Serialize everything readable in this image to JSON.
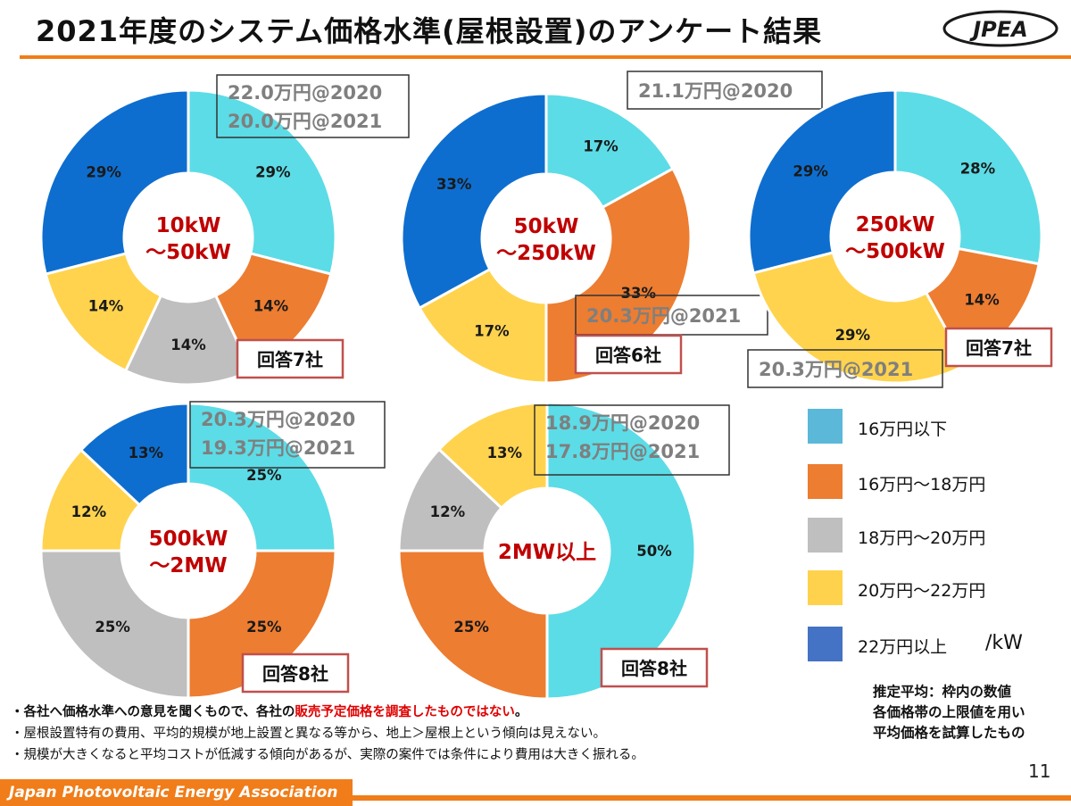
{
  "header": {
    "title": "2021年度のシステム価格水準(屋根設置)のアンケート結果",
    "logo_text": "JPEA"
  },
  "colors": {
    "accent": "#f07d19",
    "center_label": "#c00000",
    "note_highlight": "#e00000"
  },
  "chart_data": [
    {
      "type": "pie",
      "center_label": [
        "10kW",
        "～50kW"
      ],
      "categories": [
        "16万円以下",
        "16万円～18万円",
        "18万円～20万円",
        "20万円～22万円",
        "22万円以上"
      ],
      "values": [
        29,
        14,
        14,
        14,
        29
      ],
      "value_labels": [
        "29%",
        "14%",
        "14%",
        "14%",
        "29%"
      ],
      "price_box": [
        "22.0万円@2020",
        "20.0万円@2021"
      ],
      "respondents": "回答7社"
    },
    {
      "type": "pie",
      "center_label": [
        "50kW",
        "～250kW"
      ],
      "categories": [
        "16万円以下",
        "16万円～18万円",
        "18万円～20万円",
        "20万円～22万円",
        "22万円以上"
      ],
      "values": [
        17,
        33,
        0,
        17,
        33
      ],
      "value_labels": [
        "17%",
        "33%",
        "",
        "17%",
        "33%"
      ],
      "price_box_top": "21.1万円@2020",
      "price_box_bottom": "20.3万円@2021",
      "respondents": "回答6社"
    },
    {
      "type": "pie",
      "center_label": [
        "250kW",
        "～500kW"
      ],
      "categories": [
        "16万円以下",
        "16万円～18万円",
        "18万円～20万円",
        "20万円～22万円",
        "22万円以上"
      ],
      "values": [
        28,
        14,
        0,
        29,
        29
      ],
      "value_labels": [
        "28%",
        "14%",
        "",
        "29%",
        "29%"
      ],
      "price_box": [
        "20.3万円@2021"
      ],
      "respondents": "回答7社"
    },
    {
      "type": "pie",
      "center_label": [
        "500kW",
        "～2MW"
      ],
      "categories": [
        "16万円以下",
        "16万円～18万円",
        "18万円～20万円",
        "20万円～22万円",
        "22万円以上"
      ],
      "values": [
        25,
        25,
        25,
        12,
        13
      ],
      "value_labels": [
        "25%",
        "25%",
        "25%",
        "12%",
        "13%"
      ],
      "price_box": [
        "20.3万円@2020",
        "19.3万円@2021"
      ],
      "respondents": "回答8社"
    },
    {
      "type": "pie",
      "center_label": [
        "2MW以上"
      ],
      "categories": [
        "16万円以下",
        "16万円～18万円",
        "18万円～20万円",
        "20万円～22万円",
        "22万円以上"
      ],
      "values": [
        50,
        25,
        12,
        13,
        0
      ],
      "value_labels": [
        "50%",
        "25%",
        "12%",
        "13%",
        ""
      ],
      "price_box": [
        "18.9万円@2020",
        "17.8万円@2021"
      ],
      "respondents": "回答8社"
    }
  ],
  "legend": {
    "items": [
      {
        "label": "16万円以下",
        "color": "#5bb8d9"
      },
      {
        "label": "16万円～18万円",
        "color": "#ed7d31"
      },
      {
        "label": "18万円～20万円",
        "color": "#bfbfbf"
      },
      {
        "label": "20万円～22万円",
        "color": "#ffd24d"
      },
      {
        "label": "22万円以上",
        "color": "#4472c4"
      }
    ],
    "unit": "/kW"
  },
  "slice_colors": [
    "#5cdce6",
    "#ed7d31",
    "#bfbfbf",
    "#ffd34e",
    "#0e6ecf"
  ],
  "note_right": [
    "推定平均：枠内の数値",
    "各価格帯の上限値を用い",
    "平均価格を試算したもの"
  ],
  "notes": {
    "n1_pre": "・各社へ価格水準への意見を聞くもので、各社の",
    "n1_red": "販売予定価格を調査したものではない",
    "n1_post": "。",
    "n2": "・屋根設置特有の費用、平均的規模が地上設置と異なる等から、地上＞屋根上という傾向は見えない。",
    "n3": "・規模が大きくなると平均コストが低減する傾向があるが、実際の案件では条件により費用は大きく振れる。"
  },
  "footer": {
    "organization": "Japan Photovoltaic Energy Association",
    "page_number": "11"
  }
}
